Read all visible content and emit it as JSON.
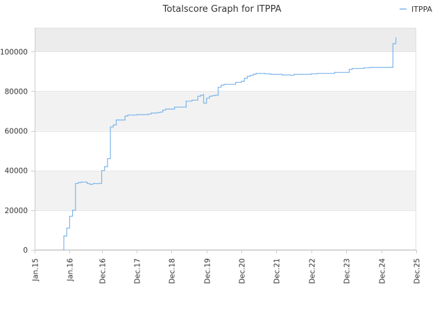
{
  "chart_data": {
    "type": "line",
    "title": "Totalscore Graph for ITPPA",
    "xlabel": "",
    "ylabel": "",
    "legend": {
      "position": "top-right",
      "entries": [
        "ITPPA"
      ]
    },
    "colors": {
      "line": "#7cb5ec",
      "band": "#f2f2f2",
      "band_top": "#ececec",
      "grid": "#e6e6e6",
      "axis": "#cccccc"
    },
    "xlim": [
      "Jan.15",
      "Dec.25"
    ],
    "ylim": [
      0,
      112000
    ],
    "y_ticks": [
      0,
      20000,
      40000,
      60000,
      80000,
      100000
    ],
    "x_ticks": [
      "Jan.15",
      "Jan.16",
      "Dec.16",
      "Dec.17",
      "Dec.18",
      "Dec.19",
      "Dec.20",
      "Dec.21",
      "Dec.22",
      "Dec.23",
      "Dec.24",
      "Dec.25"
    ],
    "grid": true,
    "series": [
      {
        "name": "ITPPA",
        "points": [
          [
            "Nov.15",
            0
          ],
          [
            "Nov.15",
            7000
          ],
          [
            "Dec.15",
            8000
          ],
          [
            "Dec.15",
            11000
          ],
          [
            "Jan.16",
            17000
          ],
          [
            "Feb.16",
            19000
          ],
          [
            "Feb.16",
            20000
          ],
          [
            "Mar.16",
            27000
          ],
          [
            "Mar.16",
            33500
          ],
          [
            "Apr.16",
            34000
          ],
          [
            "May.16",
            34200
          ],
          [
            "Jul.16",
            33500
          ],
          [
            "Aug.16",
            33000
          ],
          [
            "Sep.16",
            33500
          ],
          [
            "Oct.16",
            33400
          ],
          [
            "Nov.16",
            33500
          ],
          [
            "Dec.16",
            34000
          ],
          [
            "Dec.16",
            40000
          ],
          [
            "Jan.17",
            42000
          ],
          [
            "Feb.17",
            43000
          ],
          [
            "Feb.17",
            46000
          ],
          [
            "Mar.17",
            50000
          ],
          [
            "Mar.17",
            62000
          ],
          [
            "Apr.17",
            63000
          ],
          [
            "May.17",
            65500
          ],
          [
            "Jun.17",
            65500
          ],
          [
            "Jul.17",
            65500
          ],
          [
            "Aug.17",
            67500
          ],
          [
            "Sep.17",
            68000
          ],
          [
            "Dec.17",
            68200
          ],
          [
            "Apr.18",
            68500
          ],
          [
            "May.18",
            69000
          ],
          [
            "Jul.18",
            69200
          ],
          [
            "Aug.18",
            69500
          ],
          [
            "Sep.18",
            70500
          ],
          [
            "Oct.18",
            71000
          ],
          [
            "Dec.18",
            71000
          ],
          [
            "Jan.19",
            72000
          ],
          [
            "May.19",
            72500
          ],
          [
            "May.19",
            75000
          ],
          [
            "Jul.19",
            75500
          ],
          [
            "Aug.19",
            75500
          ],
          [
            "Sep.19",
            77500
          ],
          [
            "Oct.19",
            78000
          ],
          [
            "Nov.19",
            78500
          ],
          [
            "Nov.19",
            74000
          ],
          [
            "Dec.19",
            75500
          ],
          [
            "Dec.19",
            76500
          ],
          [
            "Jan.20",
            77500
          ],
          [
            "Feb.20",
            77800
          ],
          [
            "Mar.20",
            78000
          ],
          [
            "Apr.20",
            79500
          ],
          [
            "Apr.20",
            82000
          ],
          [
            "May.20",
            83000
          ],
          [
            "Jun.20",
            83500
          ],
          [
            "Jul.20",
            83500
          ],
          [
            "Sep.20",
            83500
          ],
          [
            "Oct.20",
            84500
          ],
          [
            "Nov.20",
            84500
          ],
          [
            "Dec.20",
            85000
          ],
          [
            "Jan.21",
            86500
          ],
          [
            "Feb.21",
            87500
          ],
          [
            "Mar.21",
            88000
          ],
          [
            "Apr.21",
            88500
          ],
          [
            "May.21",
            89000
          ],
          [
            "Jun.21",
            89000
          ],
          [
            "Aug.21",
            88800
          ],
          [
            "Oct.21",
            88500
          ],
          [
            "Feb.22",
            88200
          ],
          [
            "May.22",
            88000
          ],
          [
            "Jun.22",
            88500
          ],
          [
            "Sep.22",
            88500
          ],
          [
            "Dec.22",
            88800
          ],
          [
            "Feb.23",
            89000
          ],
          [
            "Jul.23",
            89000
          ],
          [
            "Aug.23",
            89500
          ],
          [
            "Dec.23",
            89500
          ],
          [
            "Jan.24",
            89500
          ],
          [
            "Jan.24",
            91000
          ],
          [
            "Feb.24",
            91500
          ],
          [
            "Jun.24",
            91800
          ],
          [
            "Aug.24",
            92000
          ],
          [
            "Dec.24",
            92000
          ],
          [
            "Mar.25",
            92000
          ],
          [
            "Apr.25",
            94000
          ],
          [
            "Apr.25",
            100000
          ],
          [
            "Apr.25",
            104000
          ],
          [
            "May.25",
            105000
          ],
          [
            "May.25",
            107000
          ]
        ]
      }
    ]
  }
}
